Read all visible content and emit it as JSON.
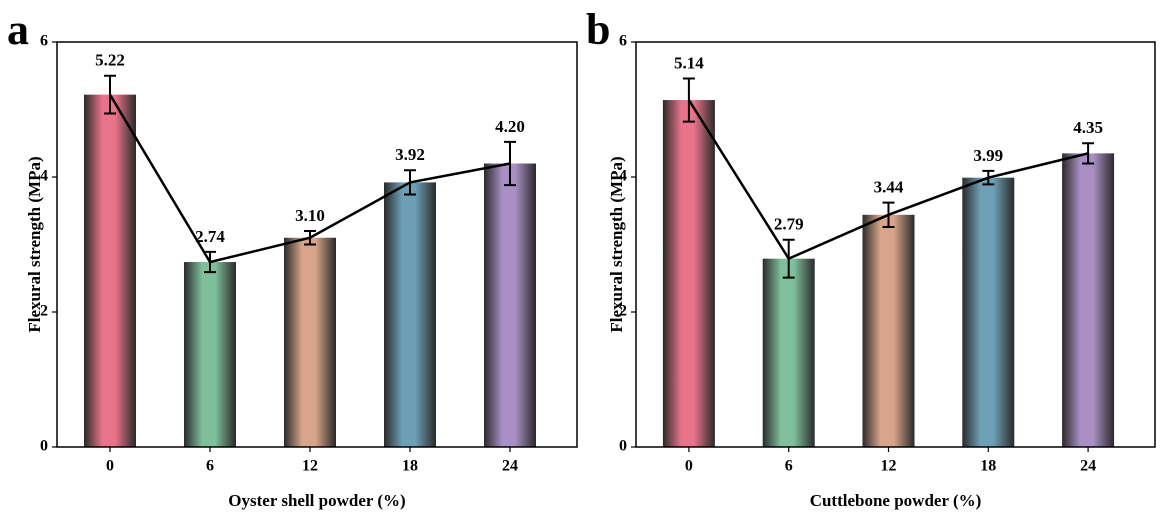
{
  "chart_data": [
    {
      "type": "bar",
      "panel_label": "a",
      "xlabel": "Oyster shell powder (%)",
      "ylabel": "Flexural strength (MPa)",
      "categories": [
        "0",
        "6",
        "12",
        "18",
        "24"
      ],
      "values": [
        5.22,
        2.74,
        3.1,
        3.92,
        4.2
      ],
      "value_labels": [
        "5.22",
        "2.74",
        "3.10",
        "3.92",
        "4.20"
      ],
      "errors": [
        0.28,
        0.15,
        0.1,
        0.18,
        0.32
      ],
      "colors": [
        "#e8738a",
        "#7fbf9c",
        "#d9a58a",
        "#6d9fb5",
        "#a98fc4"
      ],
      "line_color": "#000000",
      "ylim": [
        0,
        6
      ],
      "yticks": [
        0,
        2,
        4,
        6
      ]
    },
    {
      "type": "bar",
      "panel_label": "b",
      "xlabel": "Cuttlebone powder (%)",
      "ylabel": "Flexural strength (MPa)",
      "categories": [
        "0",
        "6",
        "12",
        "18",
        "24"
      ],
      "values": [
        5.14,
        2.79,
        3.44,
        3.99,
        4.35
      ],
      "value_labels": [
        "5.14",
        "2.79",
        "3.44",
        "3.99",
        "4.35"
      ],
      "errors": [
        0.32,
        0.28,
        0.18,
        0.1,
        0.15
      ],
      "colors": [
        "#e8738a",
        "#7fbf9c",
        "#d9a58a",
        "#6d9fb5",
        "#a98fc4"
      ],
      "line_color": "#000000",
      "ylim": [
        0,
        6
      ],
      "yticks": [
        0,
        2,
        4,
        6
      ]
    }
  ]
}
